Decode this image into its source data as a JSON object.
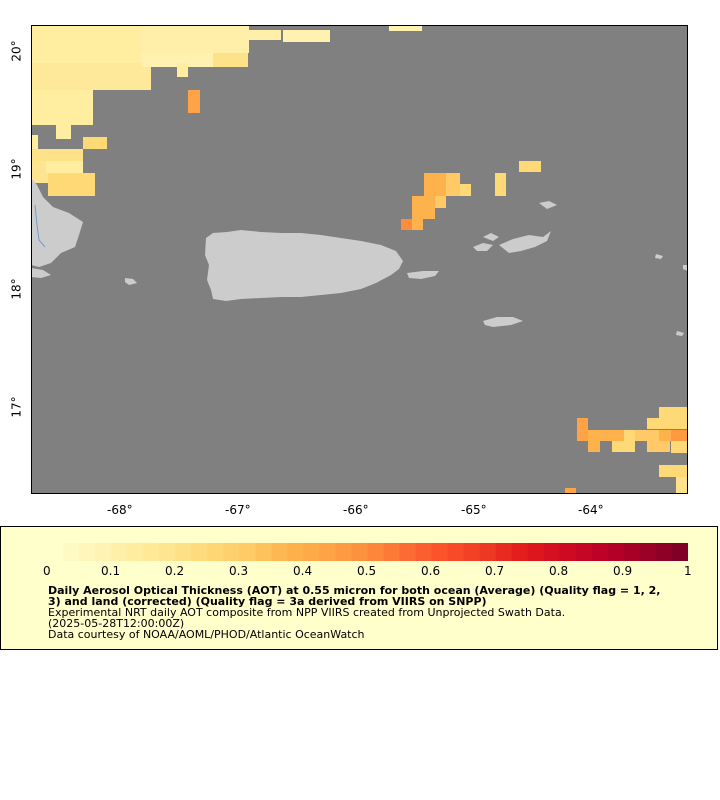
{
  "map": {
    "x_ticks": [
      "-68°",
      "-67°",
      "-66°",
      "-65°",
      "-64°"
    ],
    "y_ticks": [
      "20°",
      "19°",
      "18°",
      "17°"
    ],
    "colors": {
      "ocean_nodata": "#808080",
      "land": "#cccccc",
      "river": "#7799cc"
    }
  },
  "legend": {
    "ticks": [
      "0",
      "0.1",
      "0.2",
      "0.3",
      "0.4",
      "0.5",
      "0.6",
      "0.7",
      "0.8",
      "0.9",
      "1"
    ],
    "title": "Daily Aerosol Optical Thickness (AOT) at 0.55 micron for both ocean (Average) (Quality flag = 1, 2, 3) and land (corrected) (Quality flag = 3a derived from VIIRS on SNPP)",
    "line1": "Experimental NRT daily AOT composite from NPP VIIRS created from Unprojected Swath Data.",
    "line2": "(2025-05-28T12:00:00Z)",
    "line3": "Data courtesy of NOAA/AOML/PHOD/Atlantic OceanWatch",
    "colorscale": [
      "#ffffcc",
      "#fff4b8",
      "#ffeda0",
      "#fee48c",
      "#fed976",
      "#feca66",
      "#feb24c",
      "#fea446",
      "#fd8d3c",
      "#fc6c33",
      "#fc4e2a",
      "#ee3a24",
      "#e31a1c",
      "#cf0c21",
      "#bd0026",
      "#a10026",
      "#800026"
    ]
  }
}
